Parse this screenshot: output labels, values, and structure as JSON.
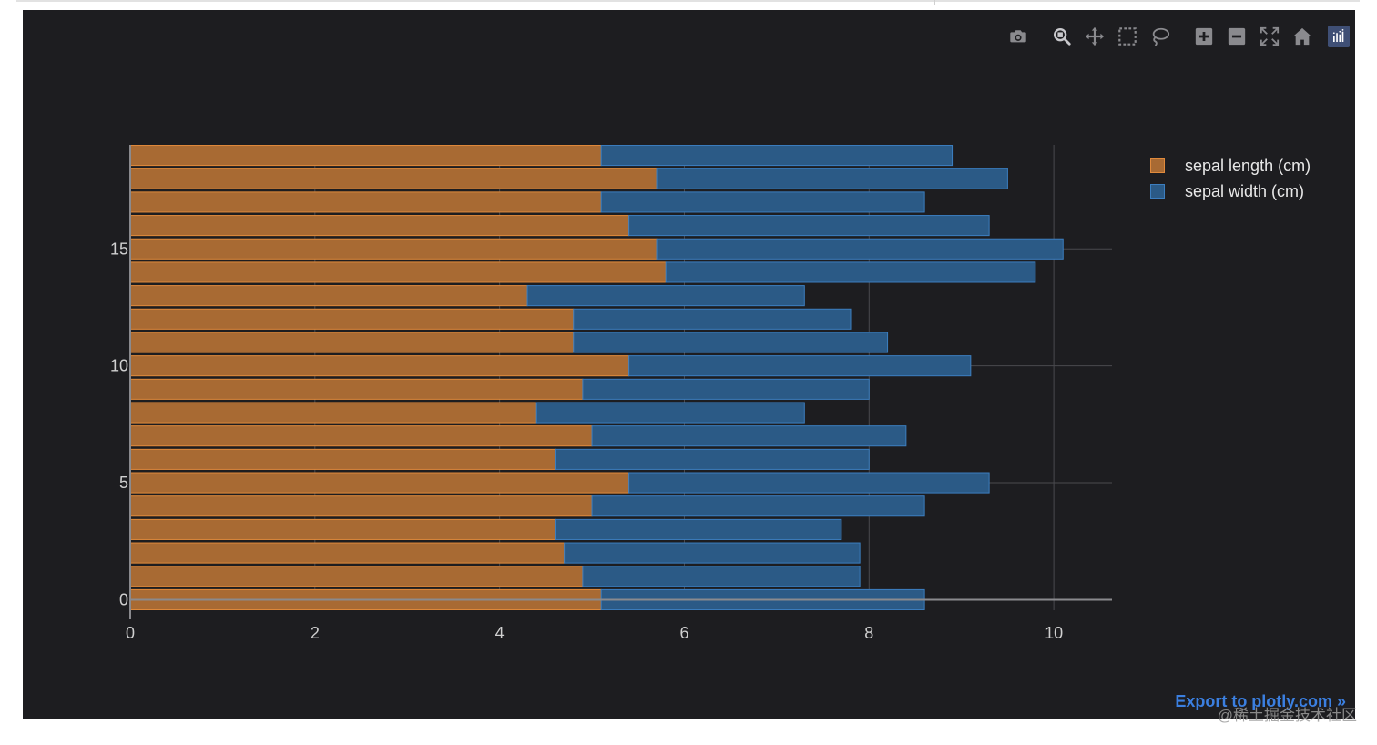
{
  "modebar": {
    "buttons": [
      {
        "name": "camera-icon",
        "label": "Download plot as a png"
      },
      {
        "name": "zoom-icon",
        "label": "Zoom"
      },
      {
        "name": "pan-icon",
        "label": "Pan"
      },
      {
        "name": "box-select-icon",
        "label": "Box Select"
      },
      {
        "name": "lasso-select-icon",
        "label": "Lasso Select"
      },
      {
        "name": "zoom-in-icon",
        "label": "Zoom in"
      },
      {
        "name": "zoom-out-icon",
        "label": "Zoom out"
      },
      {
        "name": "autoscale-icon",
        "label": "Autoscale"
      },
      {
        "name": "reset-axes-icon",
        "label": "Reset axes"
      },
      {
        "name": "plotly-logo-icon",
        "label": "Produced with Plotly"
      }
    ]
  },
  "export_link": "Export to plotly.com »",
  "watermark": "@稀土掘金技术社区",
  "colors": {
    "background": "#1d1d20",
    "grid": "#4a4a4e",
    "tick_text": "#d0d0d0",
    "series_length": "#a86a33",
    "series_length_edge": "#e08a3c",
    "series_width": "#2b5a86",
    "series_width_edge": "#3c7ebf"
  },
  "chart_data": {
    "type": "bar",
    "orientation": "horizontal",
    "barmode": "stack",
    "title": "",
    "xlabel": "",
    "ylabel": "",
    "xlim": [
      0,
      10.63
    ],
    "ylim": [
      -0.45,
      19.45
    ],
    "xticks": [
      0,
      2,
      4,
      6,
      8,
      10
    ],
    "yticks": [
      0,
      5,
      10,
      15
    ],
    "grid": true,
    "legend_position": "top-right",
    "categories": [
      0,
      1,
      2,
      3,
      4,
      5,
      6,
      7,
      8,
      9,
      10,
      11,
      12,
      13,
      14,
      15,
      16,
      17,
      18,
      19
    ],
    "series": [
      {
        "name": "sepal length (cm)",
        "values": [
          5.1,
          4.9,
          4.7,
          4.6,
          5.0,
          5.4,
          4.6,
          5.0,
          4.4,
          4.9,
          5.4,
          4.8,
          4.8,
          4.3,
          5.8,
          5.7,
          5.4,
          5.1,
          5.7,
          5.1
        ]
      },
      {
        "name": "sepal width (cm)",
        "values": [
          3.5,
          3.0,
          3.2,
          3.1,
          3.6,
          3.9,
          3.4,
          3.4,
          2.9,
          3.1,
          3.7,
          3.4,
          3.0,
          3.0,
          4.0,
          4.4,
          3.9,
          3.5,
          3.8,
          3.8
        ]
      }
    ]
  }
}
